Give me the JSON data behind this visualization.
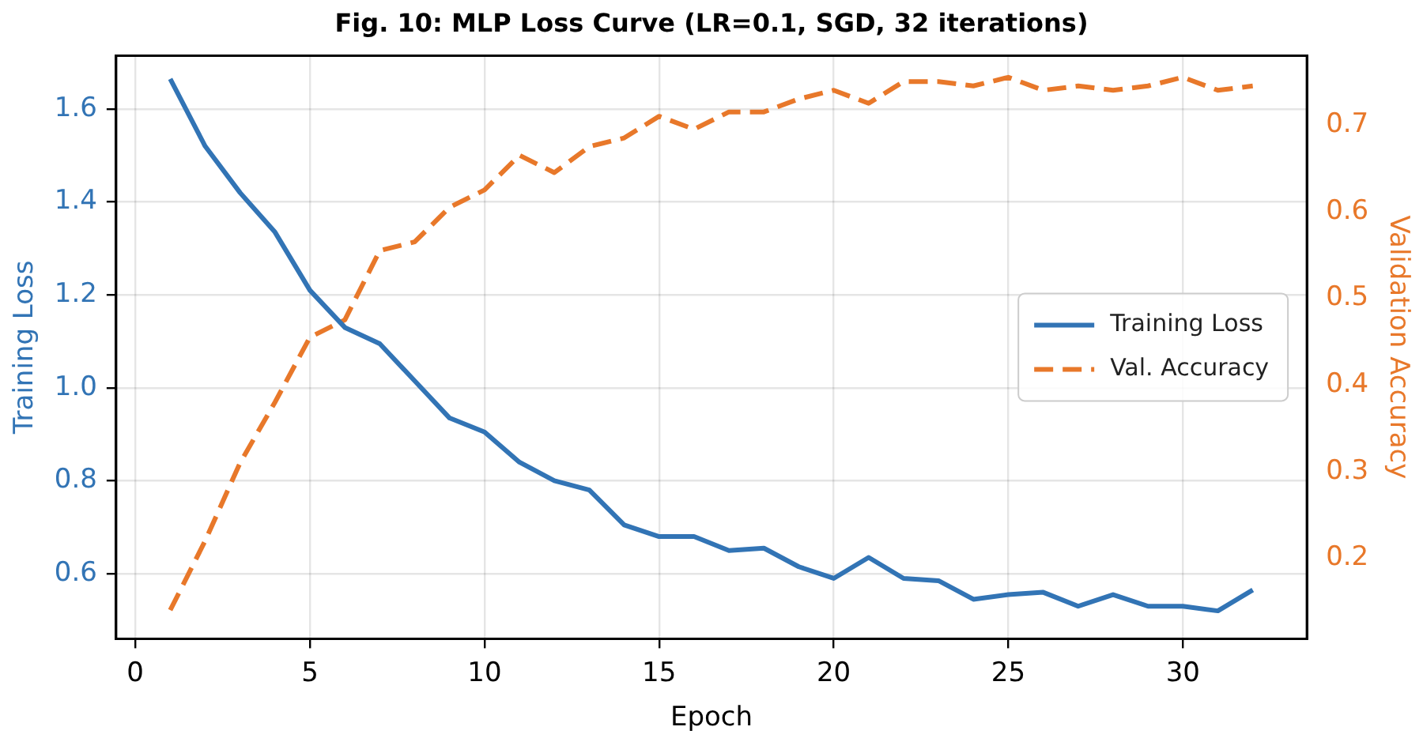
{
  "chart_data": {
    "type": "line",
    "title": "Fig. 10: MLP Loss Curve (LR=0.1, SGD, 32 iterations)",
    "xlabel": "Epoch",
    "ylabel": "Training Loss",
    "y2label": "Validation Accuracy",
    "x": [
      1,
      2,
      3,
      4,
      5,
      6,
      7,
      8,
      9,
      10,
      11,
      12,
      13,
      14,
      15,
      16,
      17,
      18,
      19,
      20,
      21,
      22,
      23,
      24,
      25,
      26,
      27,
      28,
      29,
      30,
      31,
      32
    ],
    "series": [
      {
        "name": "Training Loss",
        "color": "#3274b5",
        "line_style": "solid",
        "values": [
          1.665,
          1.52,
          1.42,
          1.335,
          1.21,
          1.13,
          1.095,
          1.015,
          0.935,
          0.905,
          0.84,
          0.8,
          0.78,
          0.705,
          0.68,
          0.68,
          0.65,
          0.655,
          0.615,
          0.59,
          0.635,
          0.59,
          0.585,
          0.545,
          0.555,
          0.56,
          0.53,
          0.555,
          0.53,
          0.53,
          0.52,
          0.565
        ]
      },
      {
        "name": "Val. Accuracy",
        "color": "#e8782a",
        "line_style": "dashed",
        "axis": "y2",
        "values": [
          0.14,
          0.22,
          0.31,
          0.38,
          0.455,
          0.475,
          0.555,
          0.565,
          0.605,
          0.625,
          0.665,
          0.645,
          0.675,
          0.685,
          0.71,
          0.695,
          0.715,
          0.715,
          0.73,
          0.74,
          0.725,
          0.75,
          0.75,
          0.745,
          0.755,
          0.74,
          0.745,
          0.74,
          0.745,
          0.755,
          0.74,
          0.745
        ]
      }
    ],
    "xlim": [
      -0.55,
      33.55
    ],
    "xticks": [
      0,
      5,
      10,
      15,
      20,
      25,
      30
    ],
    "ylim": [
      0.46,
      1.715
    ],
    "yticks": [
      0.6,
      0.8,
      {
        "value": 1,
        "label": "1.0"
      },
      1.2,
      1.4,
      1.6
    ],
    "y2lim": [
      0.107,
      0.78
    ],
    "y2ticks": [
      0.2,
      0.3,
      0.4,
      0.5,
      0.6,
      0.7
    ],
    "grid": true,
    "legend": "center right",
    "marker": "none"
  }
}
